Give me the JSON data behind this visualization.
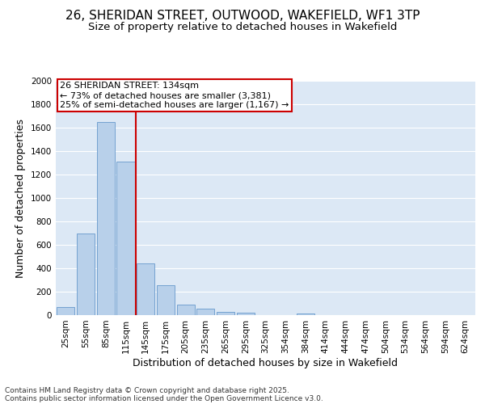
{
  "title_line1": "26, SHERIDAN STREET, OUTWOOD, WAKEFIELD, WF1 3TP",
  "title_line2": "Size of property relative to detached houses in Wakefield",
  "xlabel": "Distribution of detached houses by size in Wakefield",
  "ylabel": "Number of detached properties",
  "categories": [
    "25sqm",
    "55sqm",
    "85sqm",
    "115sqm",
    "145sqm",
    "175sqm",
    "205sqm",
    "235sqm",
    "265sqm",
    "295sqm",
    "325sqm",
    "354sqm",
    "384sqm",
    "414sqm",
    "444sqm",
    "474sqm",
    "504sqm",
    "534sqm",
    "564sqm",
    "594sqm",
    "624sqm"
  ],
  "values": [
    70,
    700,
    1650,
    1310,
    440,
    255,
    90,
    55,
    30,
    20,
    0,
    0,
    15,
    0,
    0,
    0,
    0,
    0,
    0,
    0,
    0
  ],
  "bar_color": "#b8d0ea",
  "bar_edge_color": "#6699cc",
  "background_color": "#dce8f5",
  "grid_color": "#ffffff",
  "annotation_box_text": "26 SHERIDAN STREET: 134sqm\n← 73% of detached houses are smaller (3,381)\n25% of semi-detached houses are larger (1,167) →",
  "annotation_box_color": "#ffffff",
  "annotation_box_edge_color": "#cc0000",
  "vline_color": "#cc0000",
  "vline_x": 3.5,
  "ylim": [
    0,
    2000
  ],
  "yticks": [
    0,
    200,
    400,
    600,
    800,
    1000,
    1200,
    1400,
    1600,
    1800,
    2000
  ],
  "footer_line1": "Contains HM Land Registry data © Crown copyright and database right 2025.",
  "footer_line2": "Contains public sector information licensed under the Open Government Licence v3.0.",
  "fig_bg": "#ffffff",
  "title_fontsize": 11,
  "subtitle_fontsize": 9.5,
  "axis_label_fontsize": 9,
  "tick_fontsize": 7.5,
  "annotation_fontsize": 8,
  "footer_fontsize": 6.5
}
